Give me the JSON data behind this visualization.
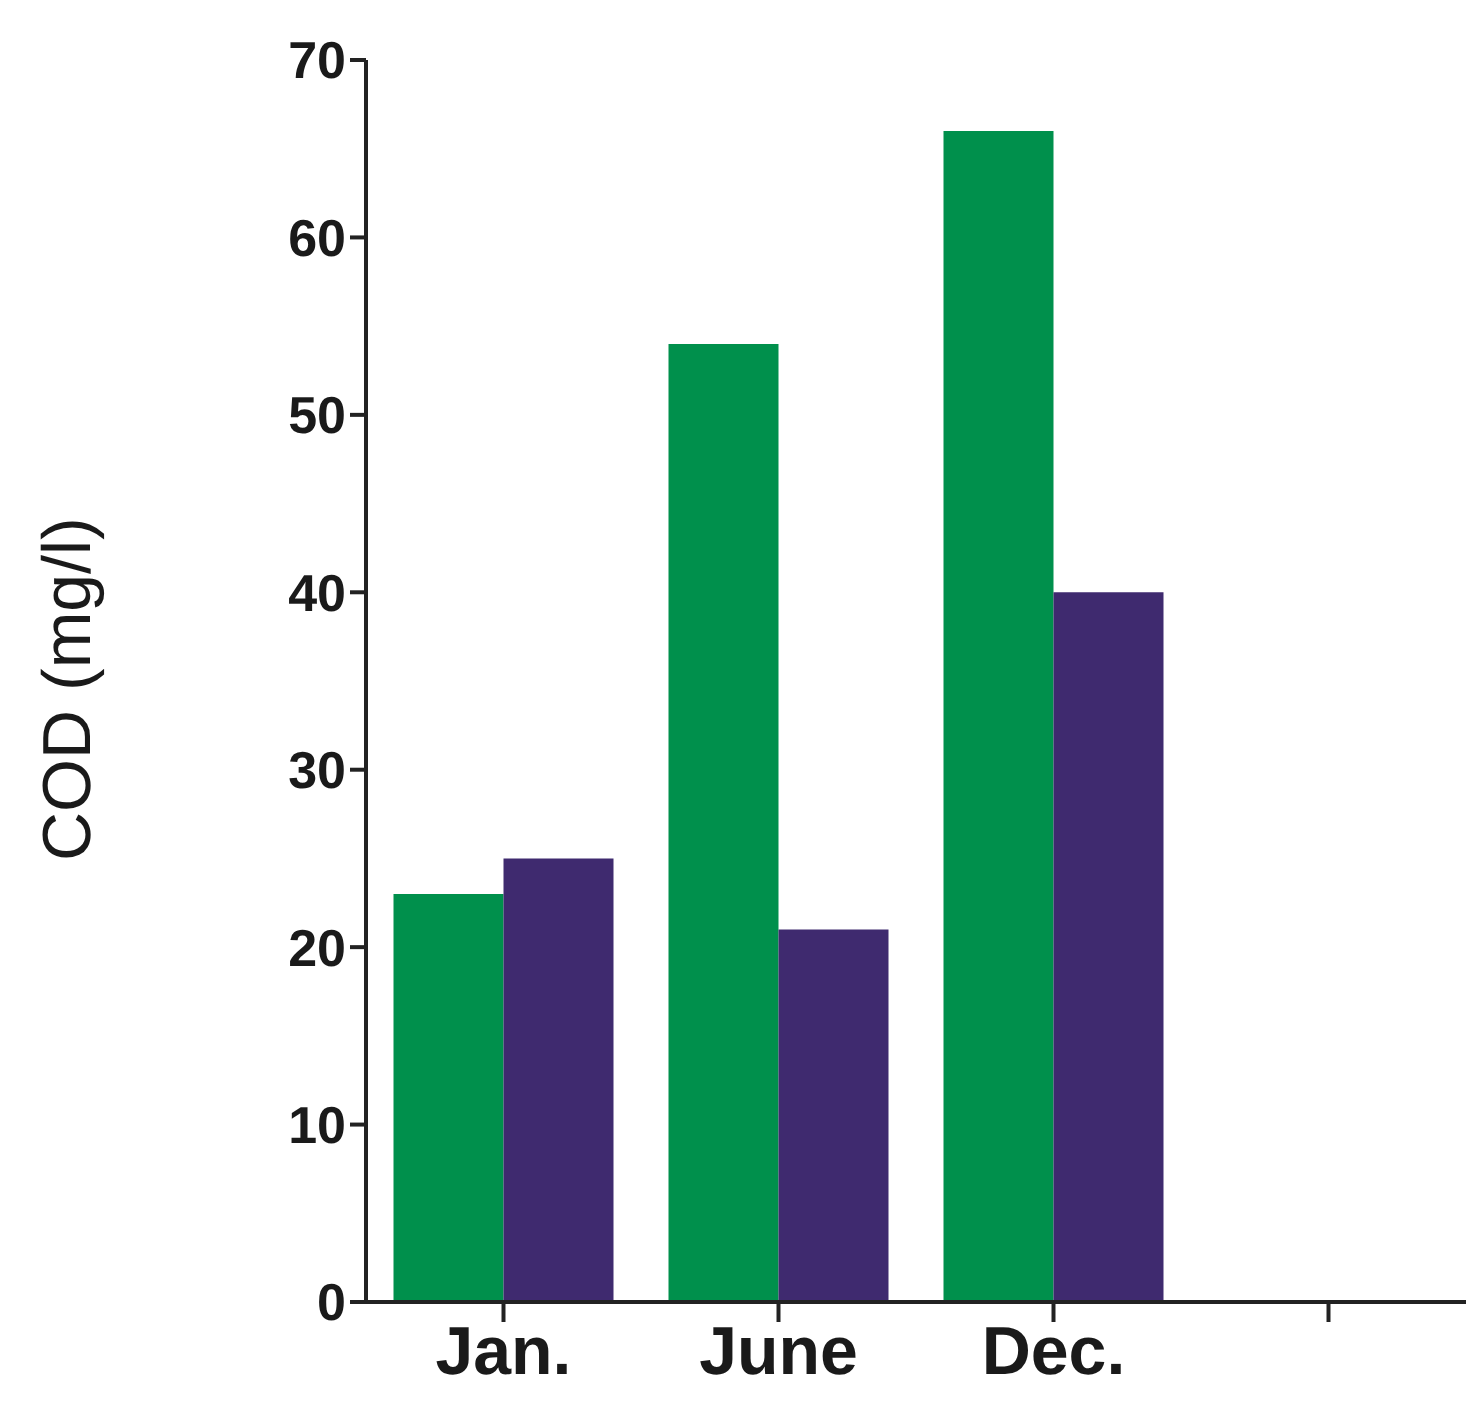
{
  "chart_data": {
    "type": "bar",
    "ylabel": "COD (mg/l)",
    "categories": [
      "Jan.",
      "June",
      "Dec.",
      null
    ],
    "series": [
      {
        "color": "#00904c",
        "values": [
          23,
          54,
          66,
          null
        ]
      },
      {
        "color": "#3f2a6f",
        "values": [
          25,
          21,
          40,
          null
        ]
      }
    ],
    "ylim": [
      0,
      70
    ],
    "yticks": [
      0,
      10,
      20,
      30,
      40,
      50,
      60,
      70
    ],
    "grid": false,
    "legend": false
  }
}
